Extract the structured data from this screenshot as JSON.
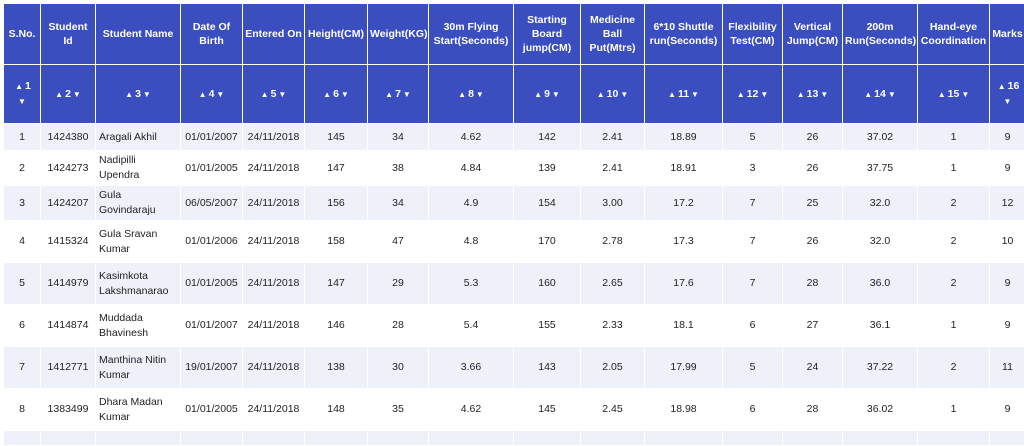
{
  "table": {
    "columns": [
      {
        "label": "S.No.",
        "sort_index": "1"
      },
      {
        "label": "Student Id",
        "sort_index": "2"
      },
      {
        "label": "Student Name",
        "sort_index": "3"
      },
      {
        "label": "Date Of Birth",
        "sort_index": "4"
      },
      {
        "label": "Entered On",
        "sort_index": "5"
      },
      {
        "label": "Height(CM)",
        "sort_index": "6"
      },
      {
        "label": "Weight(KG)",
        "sort_index": "7"
      },
      {
        "label": "30m Flying Start(Seconds)",
        "sort_index": "8"
      },
      {
        "label": "Starting Board jump(CM)",
        "sort_index": "9"
      },
      {
        "label": "Medicine Ball Put(Mtrs)",
        "sort_index": "10"
      },
      {
        "label": "6*10 Shuttle run(Seconds)",
        "sort_index": "11"
      },
      {
        "label": "Flexibility Test(CM)",
        "sort_index": "12"
      },
      {
        "label": "Vertical Jump(CM)",
        "sort_index": "13"
      },
      {
        "label": "200m Run(Seconds)",
        "sort_index": "14"
      },
      {
        "label": "Hand-eye Coordination",
        "sort_index": "15"
      },
      {
        "label": "Marks",
        "sort_index": "16"
      }
    ],
    "sort_up_glyph": "▲",
    "sort_down_glyph": "▼",
    "rows": [
      [
        "1",
        "1424380",
        "Aragali Akhil",
        "01/01/2007",
        "24/11/2018",
        "145",
        "34",
        "4.62",
        "142",
        "2.41",
        "18.89",
        "5",
        "26",
        "37.02",
        "1",
        "9"
      ],
      [
        "2",
        "1424273",
        "Nadipilli Upendra",
        "01/01/2005",
        "24/11/2018",
        "147",
        "38",
        "4.84",
        "139",
        "2.41",
        "18.91",
        "3",
        "26",
        "37.75",
        "1",
        "9"
      ],
      [
        "3",
        "1424207",
        "Gula Govindaraju",
        "06/05/2007",
        "24/11/2018",
        "156",
        "34",
        "4.9",
        "154",
        "3.00",
        "17.2",
        "7",
        "25",
        "32.0",
        "2",
        "12"
      ],
      [
        "4",
        "1415324",
        "Gula Sravan Kumar",
        "01/01/2006",
        "24/11/2018",
        "158",
        "47",
        "4.8",
        "170",
        "2.78",
        "17.3",
        "7",
        "26",
        "32.0",
        "2",
        "10"
      ],
      [
        "5",
        "1414979",
        "Kasimkota Lakshmanarao",
        "01/01/2005",
        "24/11/2018",
        "147",
        "29",
        "5.3",
        "160",
        "2.65",
        "17.6",
        "7",
        "28",
        "36.0",
        "2",
        "9"
      ],
      [
        "6",
        "1414874",
        "Muddada Bhavinesh",
        "01/01/2007",
        "24/11/2018",
        "146",
        "28",
        "5.4",
        "155",
        "2.33",
        "18.1",
        "6",
        "27",
        "36.1",
        "1",
        "9"
      ],
      [
        "7",
        "1412771",
        "Manthina Nitin Kumar",
        "19/01/2007",
        "24/11/2018",
        "138",
        "30",
        "3.66",
        "143",
        "2.05",
        "17.99",
        "5",
        "24",
        "37.22",
        "2",
        "11"
      ],
      [
        "8",
        "1383499",
        "Dhara Madan Kumar",
        "01/01/2005",
        "24/11/2018",
        "148",
        "35",
        "4.62",
        "145",
        "2.45",
        "18.98",
        "6",
        "28",
        "36.02",
        "1",
        "9"
      ]
    ]
  }
}
